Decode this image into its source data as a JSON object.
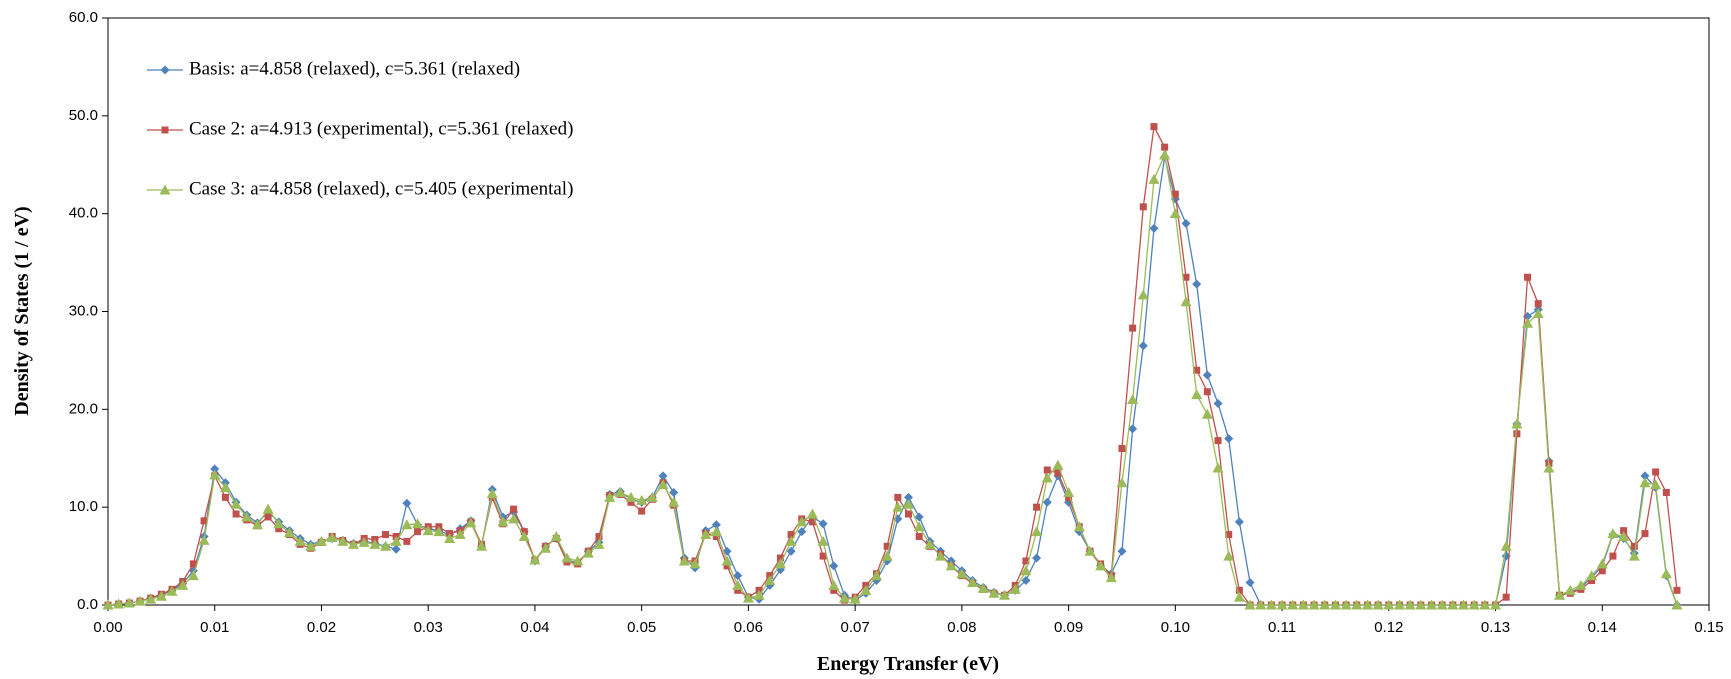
{
  "chart_data": {
    "type": "line",
    "xlabel": "Energy Transfer (eV)",
    "ylabel": "Density of States (1 / eV)",
    "legend": "upper left",
    "grid": false,
    "xlim": [
      0,
      0.15
    ],
    "ylim": [
      0,
      60
    ],
    "xticks": [
      {
        "value": 0,
        "label": "0.00"
      },
      {
        "value": 0.01,
        "label": "0.01"
      },
      {
        "value": 0.02,
        "label": "0.02"
      },
      {
        "value": 0.03,
        "label": "0.03"
      },
      {
        "value": 0.04,
        "label": "0.04"
      },
      {
        "value": 0.05,
        "label": "0.05"
      },
      {
        "value": 0.06,
        "label": "0.06"
      },
      {
        "value": 0.07,
        "label": "0.07"
      },
      {
        "value": 0.08,
        "label": "0.08"
      },
      {
        "value": 0.09,
        "label": "0.09"
      },
      {
        "value": 0.1,
        "label": "0.10"
      },
      {
        "value": 0.11,
        "label": "0.11"
      },
      {
        "value": 0.12,
        "label": "0.12"
      },
      {
        "value": 0.13,
        "label": "0.13"
      },
      {
        "value": 0.14,
        "label": "0.14"
      },
      {
        "value": 0.15,
        "label": "0.15"
      }
    ],
    "yticks": [
      {
        "value": 0,
        "label": "0.0"
      },
      {
        "value": 10,
        "label": "10.0"
      },
      {
        "value": 20,
        "label": "20.0"
      },
      {
        "value": 30,
        "label": "30.0"
      },
      {
        "value": 40,
        "label": "40.0"
      },
      {
        "value": 50,
        "label": "50.0"
      },
      {
        "value": 60,
        "label": "60.0"
      }
    ],
    "x": [
      0,
      0.001,
      0.002,
      0.003,
      0.004,
      0.005,
      0.006,
      0.007,
      0.008,
      0.009,
      0.01,
      0.011,
      0.012,
      0.013,
      0.014,
      0.015,
      0.016,
      0.017,
      0.018,
      0.019,
      0.02,
      0.021,
      0.022,
      0.023,
      0.024,
      0.025,
      0.026,
      0.027,
      0.028,
      0.029,
      0.03,
      0.031,
      0.032,
      0.033,
      0.034,
      0.035,
      0.036,
      0.037,
      0.038,
      0.039,
      0.04,
      0.041,
      0.042,
      0.043,
      0.044,
      0.045,
      0.046,
      0.047,
      0.048,
      0.049,
      0.05,
      0.051,
      0.052,
      0.053,
      0.054,
      0.055,
      0.056,
      0.057,
      0.058,
      0.059,
      0.06,
      0.061,
      0.062,
      0.063,
      0.064,
      0.065,
      0.066,
      0.067,
      0.068,
      0.069,
      0.07,
      0.071,
      0.072,
      0.073,
      0.074,
      0.075,
      0.076,
      0.077,
      0.078,
      0.079,
      0.08,
      0.081,
      0.082,
      0.083,
      0.084,
      0.085,
      0.086,
      0.087,
      0.088,
      0.089,
      0.09,
      0.091,
      0.092,
      0.093,
      0.094,
      0.095,
      0.096,
      0.097,
      0.098,
      0.099,
      0.1,
      0.101,
      0.102,
      0.103,
      0.104,
      0.105,
      0.106,
      0.107,
      0.108,
      0.109,
      0.11,
      0.111,
      0.112,
      0.113,
      0.114,
      0.115,
      0.116,
      0.117,
      0.118,
      0.119,
      0.12,
      0.121,
      0.122,
      0.123,
      0.124,
      0.125,
      0.126,
      0.127,
      0.128,
      0.129,
      0.13,
      0.131,
      0.132,
      0.133,
      0.134,
      0.135,
      0.136,
      0.137,
      0.138,
      0.139,
      0.14,
      0.141,
      0.142,
      0.143,
      0.144,
      0.145,
      0.146,
      0.147
    ],
    "series": [
      {
        "name": "Basis:  a=4.858 (relaxed), c=5.361 (relaxed)",
        "color": "#4f81bd",
        "marker": "diamond",
        "values": [
          0,
          0.1,
          0.2,
          0.4,
          0.7,
          1.0,
          1.5,
          2.2,
          3.5,
          7.0,
          13.9,
          12.5,
          10.5,
          9.2,
          8.4,
          9.5,
          8.5,
          7.6,
          6.8,
          6.2,
          6.5,
          6.8,
          6.6,
          6.3,
          6.5,
          6.3,
          6.0,
          5.7,
          10.4,
          8.2,
          7.8,
          7.6,
          7.2,
          7.8,
          8.6,
          6.0,
          11.8,
          9.0,
          9.5,
          7.5,
          4.5,
          6.0,
          6.8,
          4.6,
          4.3,
          5.5,
          6.4,
          11.3,
          11.6,
          10.8,
          10.5,
          11.0,
          13.2,
          11.5,
          4.8,
          3.8,
          7.6,
          8.2,
          5.5,
          3.0,
          0.8,
          0.6,
          2.0,
          3.6,
          5.5,
          7.5,
          9.0,
          8.3,
          4.0,
          1.0,
          0.5,
          1.2,
          2.5,
          4.5,
          8.8,
          11.0,
          9.0,
          6.5,
          5.5,
          4.5,
          3.5,
          2.5,
          1.8,
          1.3,
          1.0,
          1.5,
          2.5,
          4.8,
          10.5,
          13.2,
          10.5,
          7.5,
          5.5,
          4.0,
          3.2,
          5.5,
          18.0,
          26.5,
          38.5,
          45.8,
          41.5,
          39.0,
          32.8,
          23.5,
          20.6,
          17.0,
          8.5,
          2.3,
          0,
          0,
          0,
          0,
          0,
          0,
          0,
          0,
          0,
          0,
          0,
          0,
          0,
          0,
          0,
          0,
          0,
          0,
          0,
          0,
          0,
          0,
          0,
          5.0,
          18.5,
          29.5,
          30.2,
          14.7,
          1.0,
          1.3,
          1.8,
          2.8,
          4.0,
          7.2,
          6.8,
          5.3,
          13.2,
          12.0,
          3.0,
          0
        ]
      },
      {
        "name": "Case 2:  a=4.913 (experimental), c=5.361 (relaxed)",
        "color": "#c0504d",
        "marker": "square",
        "values": [
          0,
          0.1,
          0.2,
          0.4,
          0.7,
          1.1,
          1.6,
          2.4,
          4.2,
          8.6,
          13.2,
          11.0,
          9.3,
          8.7,
          8.1,
          9.0,
          7.8,
          7.2,
          6.2,
          5.8,
          6.4,
          7.0,
          6.6,
          6.2,
          6.8,
          6.7,
          7.2,
          7.0,
          6.5,
          7.5,
          8.0,
          8.0,
          7.3,
          7.6,
          8.5,
          6.2,
          11.0,
          8.3,
          9.8,
          7.5,
          4.6,
          6.0,
          6.8,
          4.4,
          4.2,
          5.5,
          7.0,
          11.2,
          11.3,
          10.5,
          9.6,
          10.8,
          12.5,
          10.2,
          4.5,
          4.5,
          7.3,
          7.0,
          4.0,
          1.5,
          0.8,
          1.5,
          3.0,
          4.8,
          7.2,
          8.8,
          8.5,
          5.0,
          1.5,
          0.5,
          0.8,
          2.0,
          3.2,
          6.0,
          11.0,
          9.3,
          7.0,
          6.0,
          5.2,
          4.0,
          3.0,
          2.2,
          1.6,
          1.2,
          1.0,
          2.0,
          4.5,
          10.0,
          13.8,
          13.5,
          11.0,
          8.0,
          5.5,
          4.2,
          3.0,
          16.0,
          28.3,
          40.7,
          48.9,
          46.8,
          42.0,
          33.5,
          24.0,
          21.8,
          16.8,
          7.2,
          1.5,
          0,
          0,
          0,
          0,
          0,
          0,
          0,
          0,
          0,
          0,
          0,
          0,
          0,
          0,
          0,
          0,
          0,
          0,
          0,
          0,
          0,
          0,
          0,
          0,
          0.8,
          17.5,
          33.5,
          30.8,
          14.5,
          1.0,
          1.2,
          1.6,
          2.5,
          3.5,
          5.0,
          7.6,
          6.0,
          7.3,
          13.6,
          11.5,
          1.5
        ]
      },
      {
        "name": "Case 3:  a=4.858 (relaxed), c=5.405 (experimental)",
        "color": "#9bbb59",
        "marker": "triangle",
        "values": [
          0,
          0.1,
          0.2,
          0.4,
          0.6,
          0.9,
          1.4,
          2.0,
          3.0,
          6.6,
          13.3,
          12.0,
          10.3,
          9.0,
          8.2,
          9.8,
          8.3,
          7.4,
          6.5,
          6.0,
          6.5,
          6.9,
          6.5,
          6.2,
          6.4,
          6.2,
          6.0,
          6.5,
          8.2,
          8.3,
          7.6,
          7.5,
          6.8,
          7.2,
          8.4,
          6.0,
          11.4,
          8.5,
          8.8,
          7.0,
          4.6,
          5.8,
          7.0,
          4.8,
          4.5,
          5.3,
          6.2,
          11.0,
          11.5,
          11.0,
          10.7,
          11.0,
          12.3,
          10.5,
          4.5,
          4.2,
          7.2,
          7.5,
          4.5,
          2.0,
          0.7,
          1.0,
          2.5,
          4.2,
          6.5,
          8.5,
          9.3,
          6.5,
          2.0,
          0.7,
          0.6,
          1.5,
          3.0,
          5.0,
          10.0,
          10.3,
          8.0,
          6.2,
          5.0,
          4.0,
          3.2,
          2.3,
          1.7,
          1.2,
          1.0,
          1.6,
          3.5,
          7.5,
          13.0,
          14.3,
          11.5,
          8.0,
          5.5,
          4.0,
          2.8,
          12.5,
          21.0,
          31.7,
          43.5,
          46.0,
          40.0,
          31.0,
          21.5,
          19.5,
          14.0,
          5.0,
          0.8,
          0,
          0,
          0,
          0,
          0,
          0,
          0,
          0,
          0,
          0,
          0,
          0,
          0,
          0,
          0,
          0,
          0,
          0,
          0,
          0,
          0,
          0,
          0,
          0,
          6.0,
          18.5,
          28.8,
          29.8,
          14.0,
          1.0,
          1.5,
          2.0,
          3.0,
          4.2,
          7.3,
          7.0,
          5.0,
          12.5,
          12.3,
          3.2,
          0
        ]
      }
    ]
  }
}
